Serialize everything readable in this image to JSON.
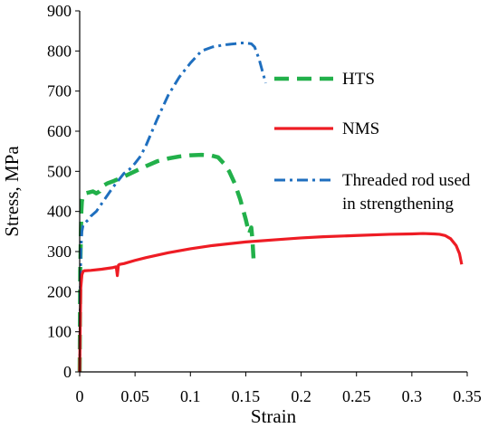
{
  "chart_data": {
    "type": "line",
    "title": "",
    "xlabel": "Strain",
    "ylabel": "Stress, MPa",
    "xlim": [
      0,
      0.35
    ],
    "ylim": [
      0,
      900
    ],
    "xticks": [
      0,
      0.05,
      0.1,
      0.15,
      0.2,
      0.25,
      0.3,
      0.35
    ],
    "yticks": [
      0,
      100,
      200,
      300,
      400,
      500,
      600,
      700,
      800,
      900
    ],
    "xtick_labels": [
      "0",
      "0.05",
      "0.1",
      "0.15",
      "0.2",
      "0.25",
      "0.3",
      "0.35"
    ],
    "ytick_labels": [
      "0",
      "100",
      "200",
      "300",
      "400",
      "500",
      "600",
      "700",
      "800",
      "900"
    ],
    "grid": false,
    "legend_position": "right",
    "series": [
      {
        "name": "HTS",
        "color": "#22b04a",
        "dash": "dashed",
        "x": [
          0,
          0.0005,
          0.001,
          0.0015,
          0.002,
          0.003,
          0.005,
          0.008,
          0.012,
          0.015,
          0.018,
          0.02,
          0.022,
          0.025,
          0.03,
          0.04,
          0.05,
          0.06,
          0.07,
          0.08,
          0.09,
          0.1,
          0.11,
          0.118,
          0.125,
          0.13,
          0.135,
          0.14,
          0.145,
          0.15,
          0.153,
          0.155,
          0.156,
          0.157
        ],
        "y": [
          0,
          250,
          330,
          400,
          425,
          440,
          445,
          447,
          450,
          445,
          450,
          460,
          465,
          470,
          475,
          487,
          500,
          513,
          525,
          532,
          537,
          540,
          541,
          540,
          535,
          520,
          500,
          470,
          430,
          380,
          345,
          360,
          330,
          283
        ]
      },
      {
        "name": "NMS",
        "color": "#ee1c24",
        "dash": "solid",
        "x": [
          0,
          0.0005,
          0.001,
          0.002,
          0.003,
          0.004,
          0.01,
          0.02,
          0.03,
          0.033,
          0.034,
          0.035,
          0.036,
          0.04,
          0.05,
          0.06,
          0.08,
          0.1,
          0.12,
          0.15,
          0.18,
          0.2,
          0.22,
          0.25,
          0.28,
          0.3,
          0.31,
          0.32,
          0.325,
          0.33,
          0.335,
          0.34,
          0.343,
          0.345
        ],
        "y": [
          0,
          120,
          210,
          242,
          250,
          252,
          253,
          256,
          260,
          262,
          240,
          266,
          268,
          270,
          278,
          285,
          297,
          307,
          315,
          324,
          330,
          334,
          337,
          340,
          343,
          344,
          345,
          344,
          343,
          340,
          332,
          315,
          295,
          268
        ]
      },
      {
        "name": "Threaded rod used in strengthening",
        "color": "#1f6fbf",
        "dash": "dashdot",
        "x": [
          0,
          0.0005,
          0.001,
          0.002,
          0.003,
          0.005,
          0.008,
          0.01,
          0.015,
          0.02,
          0.03,
          0.04,
          0.045,
          0.05,
          0.055,
          0.06,
          0.07,
          0.08,
          0.09,
          0.1,
          0.11,
          0.12,
          0.13,
          0.14,
          0.145,
          0.15,
          0.155,
          0.158,
          0.162,
          0.165,
          0.168
        ],
        "y": [
          0,
          180,
          300,
          350,
          365,
          372,
          380,
          388,
          400,
          420,
          460,
          495,
          505,
          520,
          538,
          565,
          630,
          690,
          735,
          770,
          800,
          810,
          815,
          818,
          820,
          820,
          818,
          810,
          780,
          750,
          720
        ]
      }
    ],
    "legend_labels": [
      {
        "series": 0,
        "lines": [
          "HTS"
        ]
      },
      {
        "series": 1,
        "lines": [
          "NMS"
        ]
      },
      {
        "series": 2,
        "lines": [
          "Threaded rod used",
          "in strengthening"
        ]
      }
    ]
  }
}
